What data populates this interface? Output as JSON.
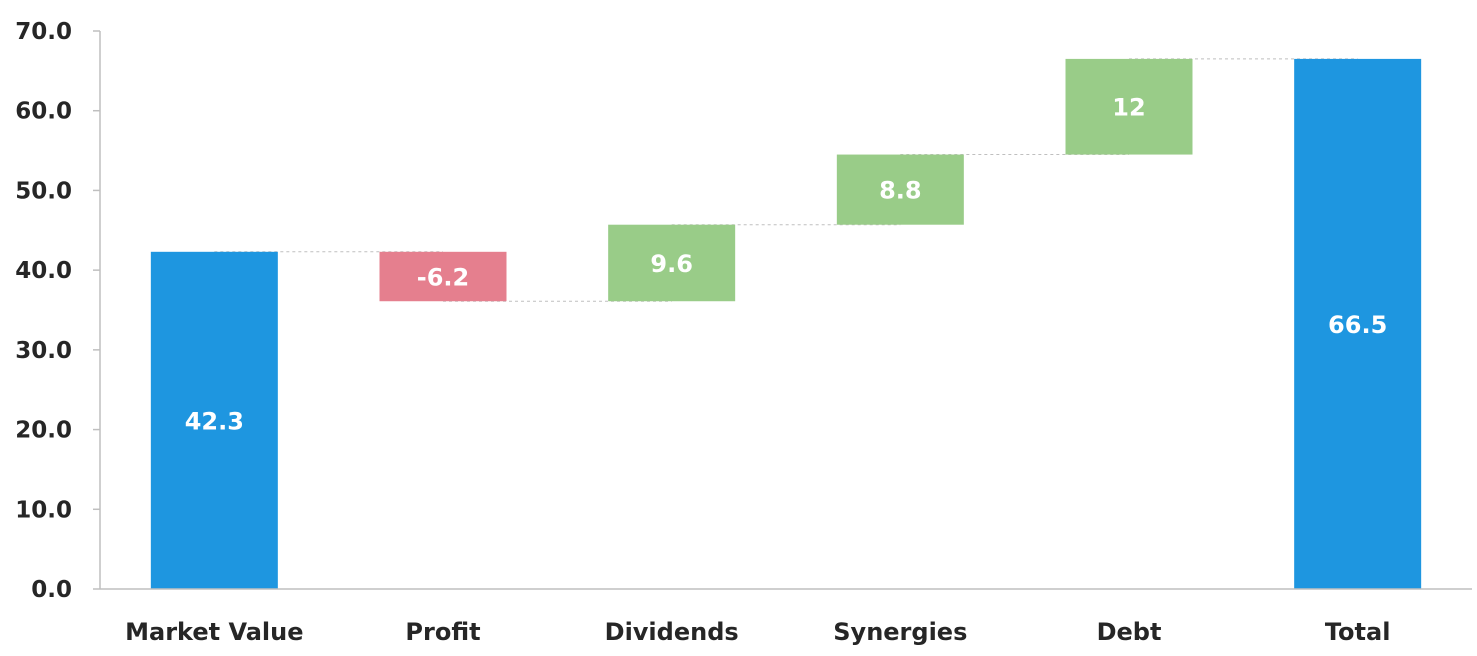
{
  "chart_data": {
    "type": "bar",
    "subtype": "waterfall",
    "title": "",
    "xlabel": "",
    "ylabel": "",
    "ylim": [
      0,
      70
    ],
    "yticks": [
      "0.0",
      "10.0",
      "20.0",
      "30.0",
      "40.0",
      "50.0",
      "60.0",
      "70.0"
    ],
    "grid": false,
    "legend": "none",
    "categories": [
      "Market Value",
      "Profit",
      "Dividends",
      "Synergies",
      "Debt",
      "Total"
    ],
    "values": [
      42.3,
      -6.2,
      9.6,
      8.8,
      12,
      66.5
    ],
    "data_labels": [
      "42.3",
      "-6.2",
      "9.6",
      "8.8",
      "12",
      "66.5"
    ],
    "kinds": [
      "total",
      "delta",
      "delta",
      "delta",
      "delta",
      "total"
    ],
    "colors": {
      "total": "#1e96e0",
      "increase": "#99cc88",
      "decrease": "#e57f8e"
    }
  }
}
